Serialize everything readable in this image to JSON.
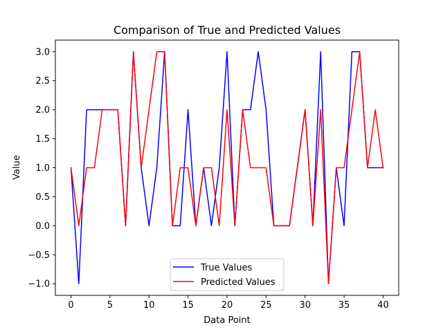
{
  "chart_data": {
    "type": "line",
    "title": "Comparison of True and Predicted Values",
    "xlabel": "Data Point",
    "ylabel": "Value",
    "xlim": [
      -2,
      42
    ],
    "ylim": [
      -1.2,
      3.2
    ],
    "xticks": [
      0,
      5,
      10,
      15,
      20,
      25,
      30,
      35,
      40
    ],
    "xtick_labels": [
      "0",
      "5",
      "10",
      "15",
      "20",
      "25",
      "30",
      "35",
      "40"
    ],
    "yticks": [
      -1.0,
      -0.5,
      0.0,
      0.5,
      1.0,
      1.5,
      2.0,
      2.5,
      3.0
    ],
    "ytick_labels": [
      "−1.0",
      "−0.5",
      "0.0",
      "0.5",
      "1.0",
      "1.5",
      "2.0",
      "2.5",
      "3.0"
    ],
    "grid": false,
    "legend_position": "bottom-center",
    "x": [
      0,
      1,
      2,
      3,
      4,
      5,
      6,
      7,
      8,
      9,
      10,
      11,
      12,
      13,
      14,
      15,
      16,
      17,
      18,
      19,
      20,
      21,
      22,
      23,
      24,
      25,
      26,
      27,
      28,
      29,
      30,
      31,
      32,
      33,
      34,
      35,
      36,
      37,
      38,
      39,
      40
    ],
    "series": [
      {
        "name": "True Values",
        "color": "#0000ff",
        "values": [
          1,
          -1,
          2,
          2,
          2,
          2,
          2,
          0,
          3,
          1,
          0,
          1,
          3,
          0,
          0,
          2,
          0,
          1,
          0,
          1,
          3,
          0,
          2,
          2,
          3,
          2,
          0,
          0,
          0,
          1,
          2,
          0,
          3,
          -1,
          1,
          0,
          3,
          3,
          1,
          1,
          1
        ]
      },
      {
        "name": "Predicted Values",
        "color": "#ff0000",
        "values": [
          1,
          0,
          1,
          1,
          2,
          2,
          2,
          0,
          3,
          1,
          2,
          3,
          3,
          0,
          1,
          1,
          0,
          1,
          1,
          0,
          2,
          0,
          2,
          1,
          1,
          1,
          0,
          0,
          0,
          1,
          2,
          0,
          2,
          -1,
          1,
          1,
          2,
          3,
          1,
          2,
          1
        ]
      }
    ]
  }
}
